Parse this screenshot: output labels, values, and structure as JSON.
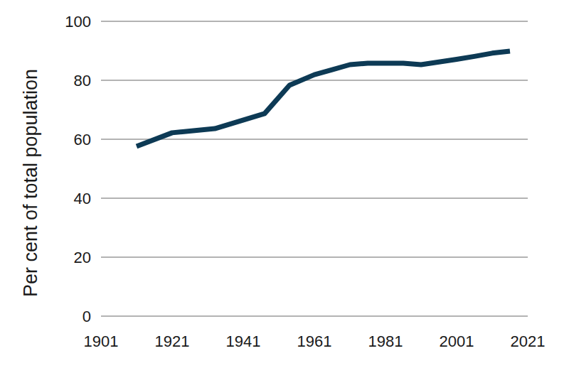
{
  "chart_data": {
    "type": "line",
    "y_label": "Per cent of total population",
    "x": [
      1911,
      1921,
      1933,
      1947,
      1954,
      1961,
      1966,
      1971,
      1976,
      1981,
      1986,
      1991,
      1996,
      2001,
      2006,
      2011,
      2016
    ],
    "values": [
      57.6,
      62.2,
      63.6,
      68.7,
      78.3,
      81.9,
      83.6,
      85.3,
      85.8,
      85.8,
      85.8,
      85.3,
      86.2,
      87.1,
      88.1,
      89.2,
      89.9
    ],
    "color": "#0d3a55",
    "xlim": [
      1901,
      2021
    ],
    "xticks": [
      1901,
      1921,
      1941,
      1961,
      1981,
      2001,
      2021
    ],
    "ylim": [
      0,
      100
    ],
    "yticks": [
      0,
      20,
      40,
      60,
      80,
      100
    ],
    "grid": true
  }
}
